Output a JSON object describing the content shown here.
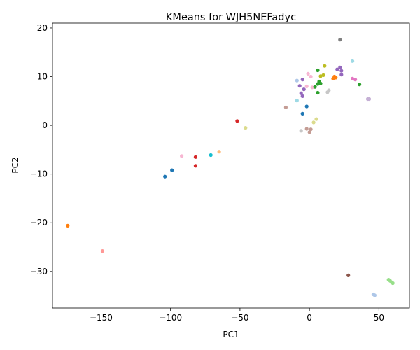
{
  "chart_data": {
    "type": "scatter",
    "title": "KMeans for WJH5NEFadyc",
    "xlabel": "PC1",
    "ylabel": "PC2",
    "xlim": [
      -185,
      72
    ],
    "ylim": [
      -37.5,
      21
    ],
    "xticks": [
      -150,
      -100,
      -50,
      0,
      50
    ],
    "yticks": [
      -30,
      -20,
      -10,
      0,
      10,
      20
    ],
    "xtick_labels": [
      "−150",
      "−100",
      "−50",
      "0",
      "50"
    ],
    "ytick_labels": [
      "−30",
      "−20",
      "−10",
      "0",
      "10",
      "20"
    ],
    "grid": false,
    "legend": "none",
    "points": [
      {
        "x": -174,
        "y": -20.6,
        "color": "#ff7f0e"
      },
      {
        "x": -149,
        "y": -25.8,
        "color": "#ff9896"
      },
      {
        "x": -104,
        "y": -10.5,
        "color": "#1f77b4"
      },
      {
        "x": -99,
        "y": -9.2,
        "color": "#1f77b4"
      },
      {
        "x": -92,
        "y": -6.3,
        "color": "#f7b6d2"
      },
      {
        "x": -82,
        "y": -6.5,
        "color": "#d62728"
      },
      {
        "x": -82,
        "y": -8.3,
        "color": "#d62728"
      },
      {
        "x": -71,
        "y": -6.1,
        "color": "#17becf"
      },
      {
        "x": -65,
        "y": -5.4,
        "color": "#ffbb78"
      },
      {
        "x": -52,
        "y": 0.9,
        "color": "#d62728"
      },
      {
        "x": -46,
        "y": -0.5,
        "color": "#dbdb8d"
      },
      {
        "x": -17,
        "y": 3.7,
        "color": "#c49c94"
      },
      {
        "x": -9,
        "y": 5.1,
        "color": "#9edae5"
      },
      {
        "x": -9,
        "y": 9.2,
        "color": "#aec7e8"
      },
      {
        "x": -7,
        "y": 8.1,
        "color": "#9467bd"
      },
      {
        "x": -6,
        "y": 6.6,
        "color": "#9467bd"
      },
      {
        "x": -5,
        "y": 6.0,
        "color": "#9467bd"
      },
      {
        "x": -5,
        "y": 9.4,
        "color": "#9467bd"
      },
      {
        "x": -4,
        "y": 7.4,
        "color": "#9467bd"
      },
      {
        "x": -6,
        "y": -1.1,
        "color": "#c7c7c7"
      },
      {
        "x": -5,
        "y": 2.4,
        "color": "#1f77b4"
      },
      {
        "x": -2,
        "y": 3.9,
        "color": "#1f77b4"
      },
      {
        "x": -2,
        "y": 8.0,
        "color": "#f7b6d2"
      },
      {
        "x": -1,
        "y": 10.6,
        "color": "#f7b6d2"
      },
      {
        "x": 1,
        "y": 10.0,
        "color": "#f7b6d2"
      },
      {
        "x": 2,
        "y": 7.8,
        "color": "#f7b6d2"
      },
      {
        "x": -2,
        "y": -0.7,
        "color": "#c49c94"
      },
      {
        "x": 0,
        "y": -1.4,
        "color": "#c49c94"
      },
      {
        "x": 1,
        "y": -0.8,
        "color": "#c49c94"
      },
      {
        "x": 3,
        "y": 0.6,
        "color": "#dbdb8d"
      },
      {
        "x": 5,
        "y": 1.3,
        "color": "#dbdb8d"
      },
      {
        "x": 4,
        "y": 7.9,
        "color": "#2ca02c"
      },
      {
        "x": 6,
        "y": 8.5,
        "color": "#2ca02c"
      },
      {
        "x": 7,
        "y": 9.0,
        "color": "#2ca02c"
      },
      {
        "x": 8,
        "y": 8.6,
        "color": "#2ca02c"
      },
      {
        "x": 6,
        "y": 11.3,
        "color": "#2ca02c"
      },
      {
        "x": 6,
        "y": 6.7,
        "color": "#2ca02c"
      },
      {
        "x": 8,
        "y": 10.1,
        "color": "#bcbd22"
      },
      {
        "x": 10,
        "y": 10.3,
        "color": "#bcbd22"
      },
      {
        "x": 11,
        "y": 12.2,
        "color": "#bcbd22"
      },
      {
        "x": 13,
        "y": 6.8,
        "color": "#c7c7c7"
      },
      {
        "x": 14,
        "y": 7.2,
        "color": "#c7c7c7"
      },
      {
        "x": 17,
        "y": 9.6,
        "color": "#ff7f0e"
      },
      {
        "x": 18,
        "y": 10.0,
        "color": "#ff7f0e"
      },
      {
        "x": 19,
        "y": 9.8,
        "color": "#ff7f0e"
      },
      {
        "x": 20,
        "y": 11.5,
        "color": "#9467bd"
      },
      {
        "x": 22,
        "y": 11.9,
        "color": "#9467bd"
      },
      {
        "x": 23,
        "y": 11.2,
        "color": "#9467bd"
      },
      {
        "x": 23,
        "y": 10.4,
        "color": "#9467bd"
      },
      {
        "x": 22,
        "y": 17.6,
        "color": "#7f7f7f"
      },
      {
        "x": 31,
        "y": 13.2,
        "color": "#9edae5"
      },
      {
        "x": 31,
        "y": 9.6,
        "color": "#e377c2"
      },
      {
        "x": 33,
        "y": 9.4,
        "color": "#e377c2"
      },
      {
        "x": 36,
        "y": 8.4,
        "color": "#2ca02c"
      },
      {
        "x": 42,
        "y": 5.4,
        "color": "#c5b0d5"
      },
      {
        "x": 43,
        "y": 5.4,
        "color": "#c5b0d5"
      },
      {
        "x": 28,
        "y": -30.8,
        "color": "#8c564b"
      },
      {
        "x": 46,
        "y": -34.7,
        "color": "#aec7e8"
      },
      {
        "x": 47,
        "y": -34.9,
        "color": "#aec7e8"
      },
      {
        "x": 57,
        "y": -31.7,
        "color": "#98df8a"
      },
      {
        "x": 58,
        "y": -31.9,
        "color": "#98df8a"
      },
      {
        "x": 59,
        "y": -32.2,
        "color": "#98df8a"
      },
      {
        "x": 60,
        "y": -32.4,
        "color": "#98df8a"
      }
    ]
  }
}
